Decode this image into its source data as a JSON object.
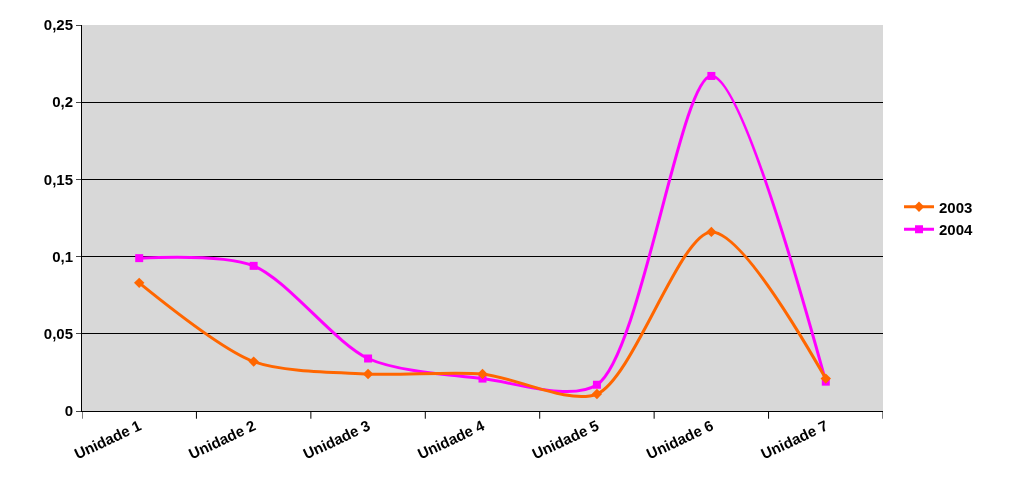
{
  "chart_data": {
    "type": "line",
    "categories": [
      "Unidade 1",
      "Unidade 2",
      "Unidade 3",
      "Unidade 4",
      "Unidade 5",
      "Unidade 6",
      "Unidade 7"
    ],
    "series": [
      {
        "name": "2003",
        "color": "#ff6600",
        "marker": "diamond",
        "values": [
          0.083,
          0.032,
          0.024,
          0.024,
          0.011,
          0.116,
          0.021
        ]
      },
      {
        "name": "2004",
        "color": "#ff00ff",
        "marker": "square",
        "values": [
          0.099,
          0.094,
          0.034,
          0.021,
          0.017,
          0.217,
          0.019
        ]
      }
    ],
    "ylim": [
      0,
      0.25
    ],
    "yticks": [
      0,
      {
        "value": 0.05,
        "label": "0,05"
      },
      {
        "value": 0.1,
        "label": "0,1"
      },
      {
        "value": 0.15,
        "label": "0,15"
      },
      {
        "value": 0.2,
        "label": "0,2"
      },
      {
        "value": 0.25,
        "label": "0,25"
      }
    ],
    "grid": "y",
    "legend": "right",
    "line_style": "solid"
  }
}
